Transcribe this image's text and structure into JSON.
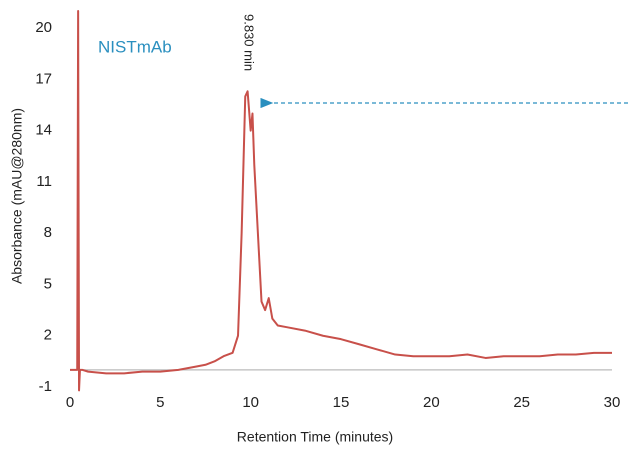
{
  "chart_data": {
    "type": "line",
    "x_label": "Retention Time (minutes)",
    "y_label": "Absorbance (mAU@280nm)",
    "annotations": [
      "NISTmAb",
      "9.830 min"
    ],
    "hline": 0,
    "xlim": [
      0,
      30
    ],
    "xticks": [
      0,
      5,
      10,
      15,
      20,
      25,
      30
    ],
    "ylim": [
      -1,
      21
    ],
    "yticks": [
      -1,
      2,
      5,
      8,
      11,
      14,
      17,
      20
    ],
    "series": [
      {
        "name": "NISTmAb",
        "color": "#c8504a",
        "x": [
          0,
          0.4,
          0.45,
          0.5,
          0.55,
          0.7,
          1,
          2,
          3,
          4,
          5,
          6,
          7,
          7.5,
          8,
          8.5,
          9,
          9.3,
          9.5,
          9.7,
          9.83,
          10,
          10.1,
          10.2,
          10.4,
          10.6,
          10.8,
          11,
          11.2,
          11.5,
          12,
          13,
          14,
          15,
          16,
          17,
          18,
          19,
          20,
          21,
          22,
          23,
          24,
          25,
          26,
          27,
          28,
          29,
          30
        ],
        "values": [
          0,
          0,
          21,
          -1.2,
          0,
          0,
          -0.1,
          -0.2,
          -0.2,
          -0.1,
          -0.1,
          0,
          0.2,
          0.3,
          0.5,
          0.8,
          1,
          2,
          8,
          16,
          16.3,
          14,
          15,
          12,
          8,
          4,
          3.5,
          4.2,
          3,
          2.6,
          2.5,
          2.3,
          2,
          1.8,
          1.5,
          1.2,
          0.9,
          0.8,
          0.8,
          0.8,
          0.9,
          0.7,
          0.8,
          0.8,
          0.8,
          0.9,
          0.9,
          1,
          1
        ]
      }
    ]
  }
}
